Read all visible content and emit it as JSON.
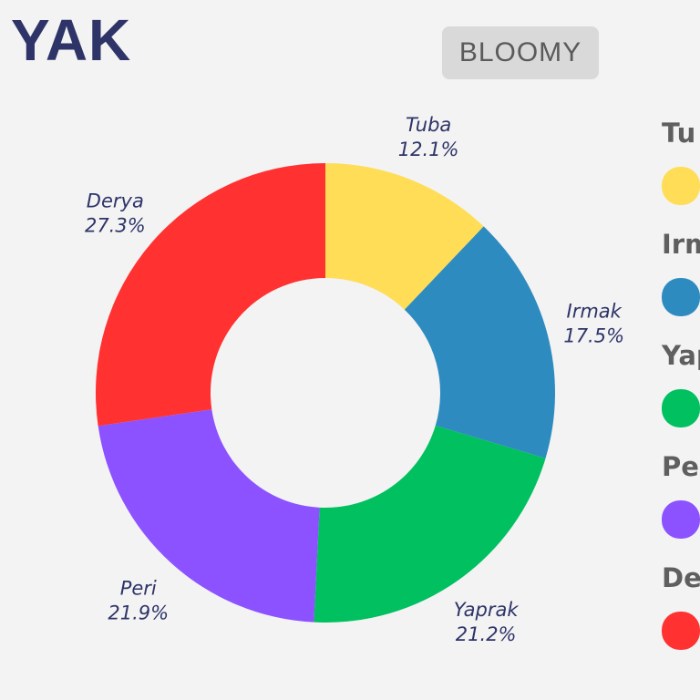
{
  "header": {
    "title": "YAK",
    "badge": "BLOOMY"
  },
  "chart_data": {
    "type": "pie",
    "donut": true,
    "start_angle_deg": 0,
    "direction": "clockwise",
    "slices": [
      {
        "name": "Tuba",
        "value": 12.1,
        "label": "12.1%",
        "color": "#ffdd57"
      },
      {
        "name": "Irmak",
        "value": 17.5,
        "label": "17.5%",
        "color": "#2e8bc0"
      },
      {
        "name": "Yaprak",
        "value": 21.2,
        "label": "21.2%",
        "color": "#00c060"
      },
      {
        "name": "Peri",
        "value": 21.9,
        "label": "21.9%",
        "color": "#8c52ff"
      },
      {
        "name": "Derya",
        "value": 27.3,
        "label": "27.3%",
        "color": "#ff3131"
      }
    ],
    "legend": {
      "placement": "right",
      "entries": [
        "Tu",
        "Irm",
        "Yap",
        "Per",
        "De"
      ]
    }
  }
}
